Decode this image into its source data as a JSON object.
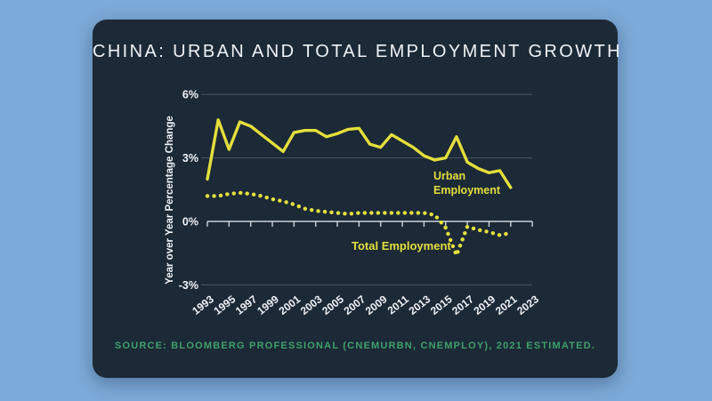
{
  "title": "CHINA: URBAN AND TOTAL EMPLOYMENT GROWTH",
  "source": "SOURCE: BLOOMBERG PROFESSIONAL (CNEMURBN, CNEMPLOY), 2021 ESTIMATED.",
  "colors": {
    "page_bg": "#7caad9",
    "card_bg": "#1c2937",
    "title_text": "#f0f3f6",
    "axis_text": "#f0f3f6",
    "grid_faint": "#4a5662",
    "axis_bright": "#ccd4db",
    "series_yellow": "#e4df3b",
    "source_green": "#3fa169"
  },
  "chart_data": {
    "type": "line",
    "title": "",
    "xlabel": "",
    "ylabel": "Year over Year Percentage Change",
    "ylim": [
      -3,
      6
    ],
    "yticks": [
      6,
      3,
      0,
      -3
    ],
    "ytick_labels": [
      "6%",
      "3%",
      "0%",
      "-3%"
    ],
    "xticks": [
      1993,
      1995,
      1997,
      1999,
      2001,
      2003,
      2005,
      2007,
      2009,
      2011,
      2013,
      2015,
      2017,
      2019,
      2021,
      2023
    ],
    "grid": "horizontal",
    "legend_position": "inline-annotations",
    "x": [
      1993,
      1994,
      1995,
      1996,
      1997,
      1998,
      1999,
      2000,
      2001,
      2002,
      2003,
      2004,
      2005,
      2006,
      2007,
      2008,
      2009,
      2010,
      2011,
      2012,
      2013,
      2014,
      2015,
      2016,
      2017,
      2018,
      2019,
      2020,
      2021
    ],
    "series": [
      {
        "name": "Urban Employment",
        "style": "solid",
        "values": [
          2.0,
          4.8,
          3.4,
          4.7,
          4.5,
          4.1,
          3.7,
          3.3,
          4.2,
          4.3,
          4.3,
          4.0,
          4.15,
          4.35,
          4.4,
          3.65,
          3.5,
          4.1,
          3.8,
          3.5,
          3.1,
          2.9,
          3.0,
          4.0,
          2.8,
          2.5,
          2.3,
          2.4,
          1.6
        ]
      },
      {
        "name": "Total Employment",
        "style": "dotted",
        "values": [
          1.2,
          1.2,
          1.3,
          1.35,
          1.3,
          1.2,
          1.05,
          0.95,
          0.8,
          0.6,
          0.5,
          0.45,
          0.4,
          0.35,
          0.4,
          0.4,
          0.4,
          0.4,
          0.4,
          0.4,
          0.4,
          0.3,
          -0.3,
          -1.6,
          -0.25,
          -0.4,
          -0.5,
          -0.65,
          -0.55
        ]
      }
    ],
    "annotations": [
      {
        "text_line1": "Urban",
        "text_line2": "Employment",
        "series": "Urban Employment"
      },
      {
        "text_line1": "Total Employment",
        "text_line2": "",
        "series": "Total Employment"
      }
    ]
  }
}
